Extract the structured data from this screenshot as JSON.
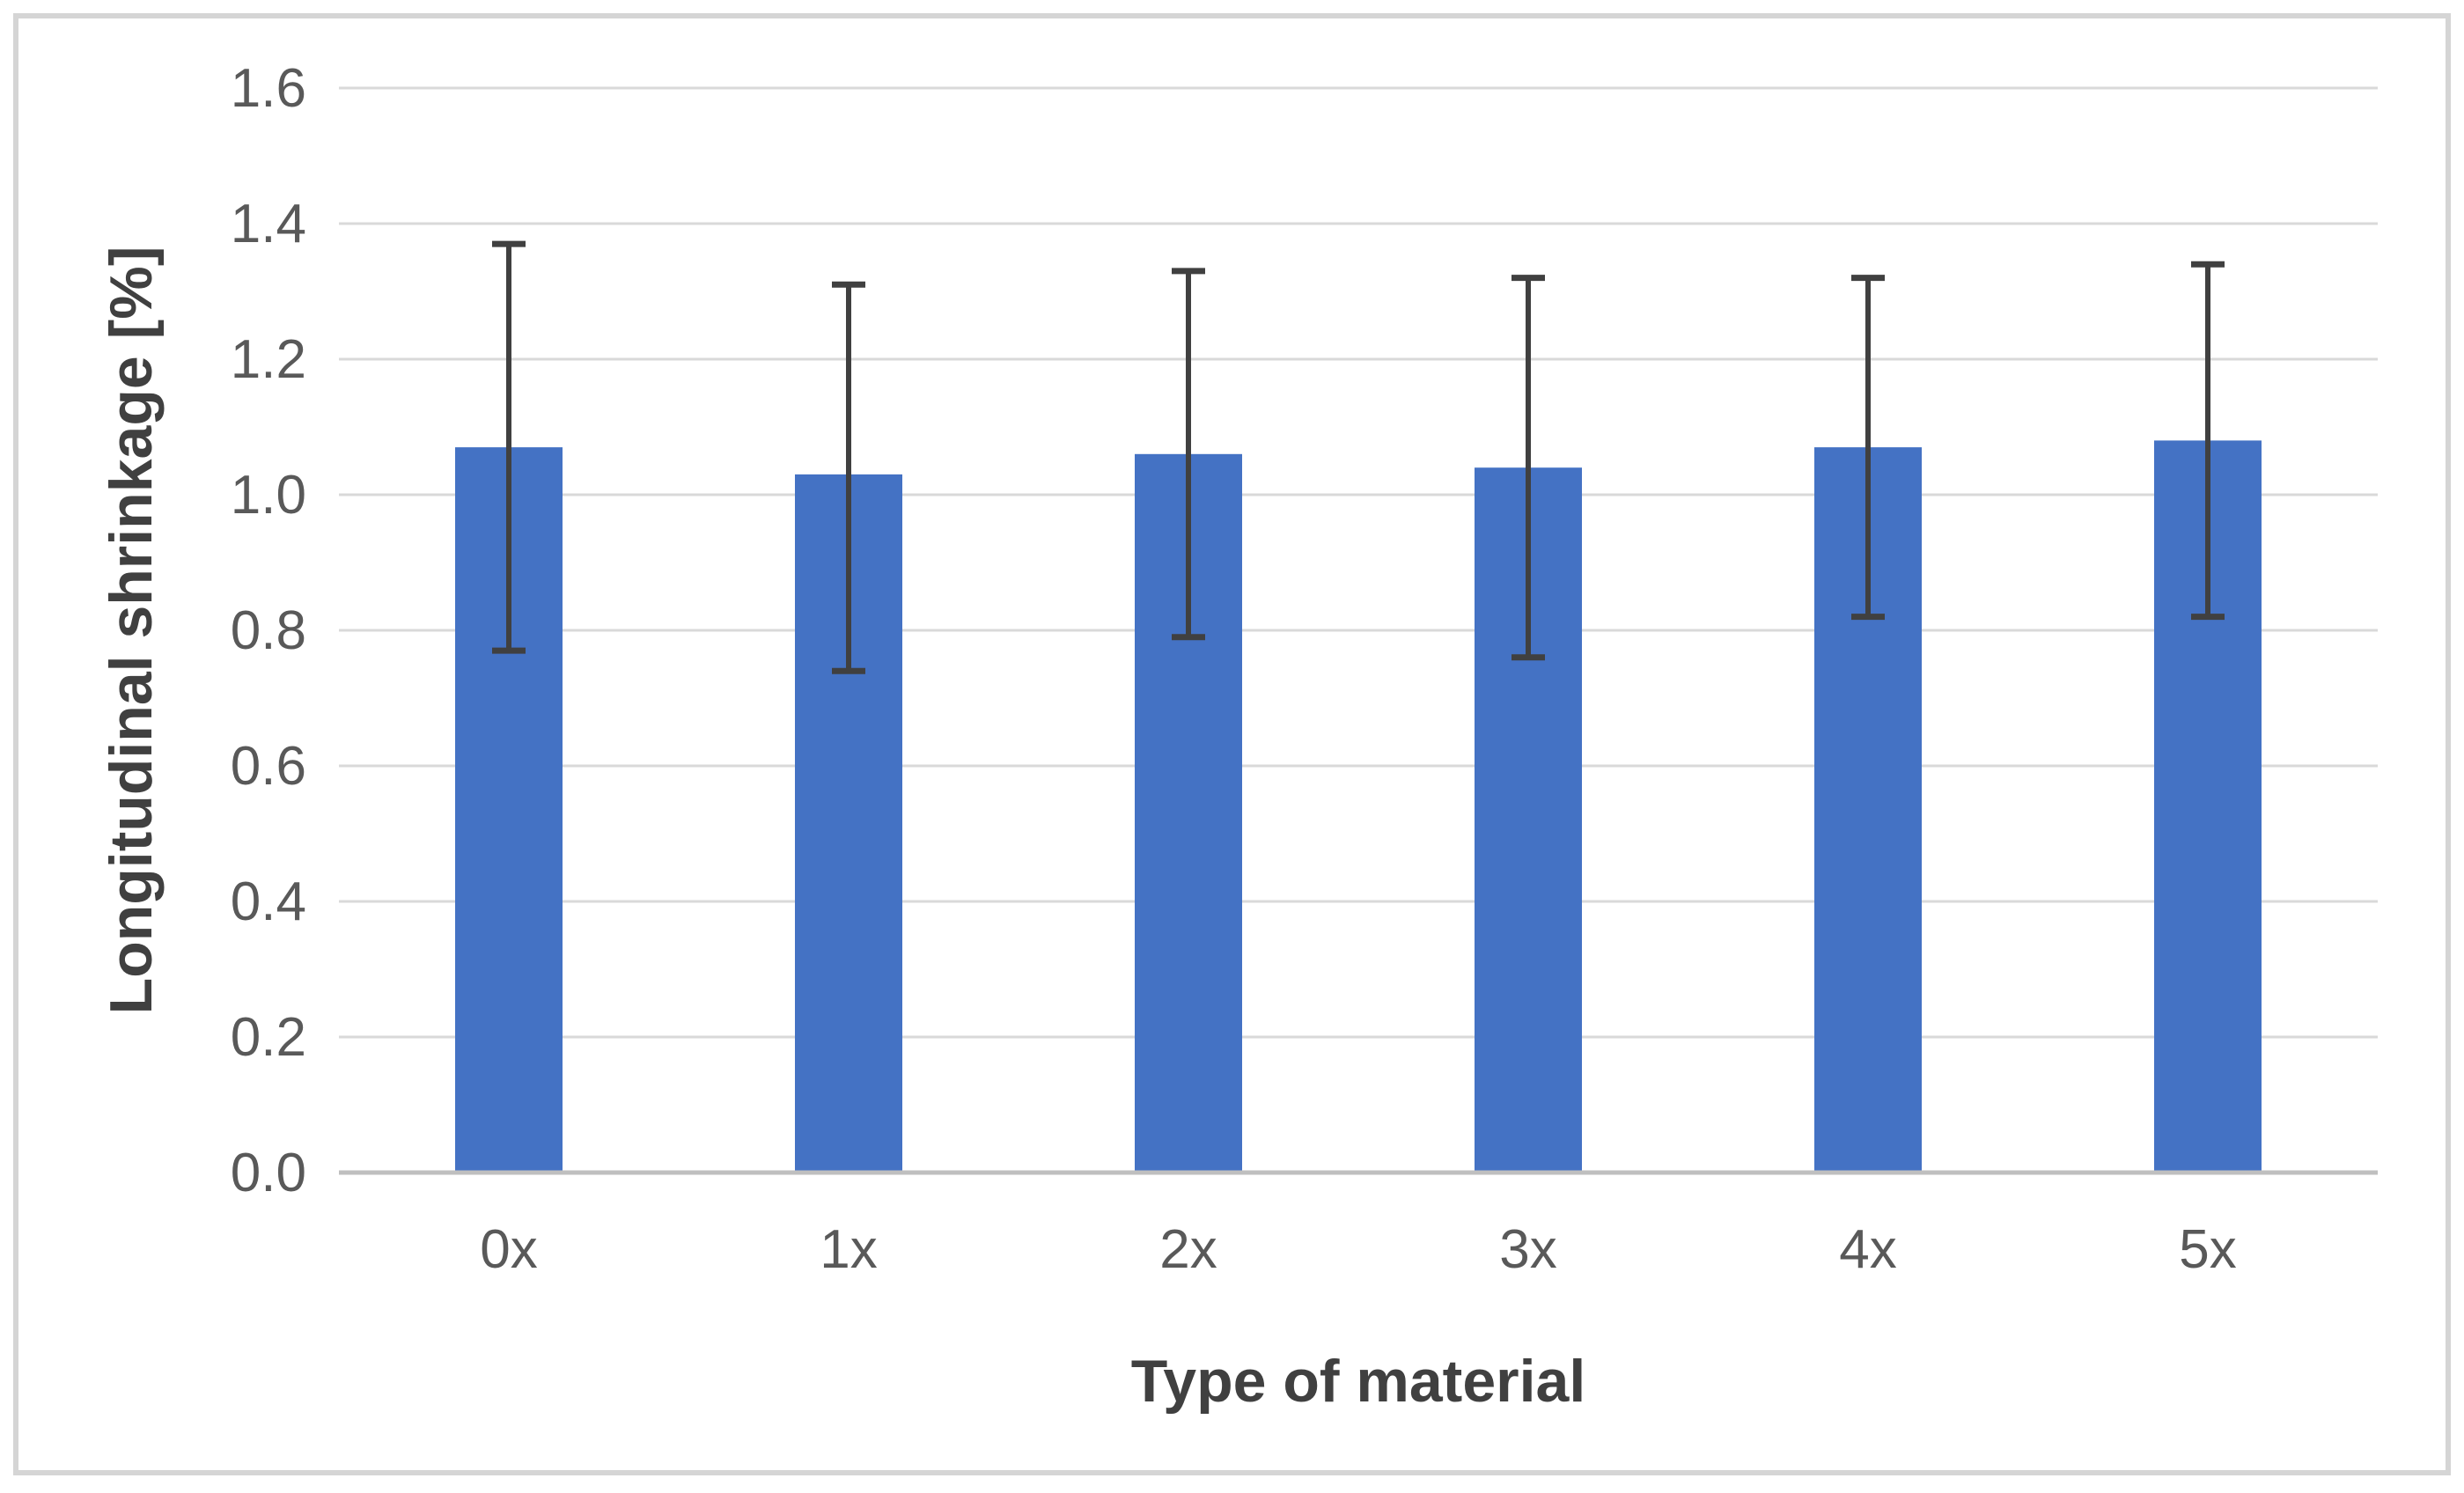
{
  "chart_data": {
    "type": "bar",
    "title": "",
    "categories": [
      "0x",
      "1x",
      "2x",
      "3x",
      "4x",
      "5x"
    ],
    "values": [
      1.07,
      1.03,
      1.06,
      1.04,
      1.07,
      1.08
    ],
    "error_high": [
      1.37,
      1.31,
      1.33,
      1.32,
      1.32,
      1.34
    ],
    "error_low": [
      0.77,
      0.74,
      0.79,
      0.76,
      0.82,
      0.82
    ],
    "xlabel": "Type of material",
    "ylabel": "Longitudinal shrinkage [%]",
    "ylim": [
      0,
      1.6
    ],
    "ytick_step": 0.2,
    "ytick_labels": [
      "0.0",
      "0.2",
      "0.4",
      "0.6",
      "0.8",
      "1.0",
      "1.2",
      "1.4",
      "1.6"
    ],
    "grid": true,
    "legend_position": "none",
    "colors": {
      "bar_fill": "#4472C4",
      "error_bar": "#404040",
      "gridline": "#D9D9D9",
      "axis_line": "#BFBFBF",
      "tick_label": "#595959",
      "axis_title": "#404040",
      "frame_border": "#D5D5D5",
      "background": "#FFFFFF"
    }
  }
}
